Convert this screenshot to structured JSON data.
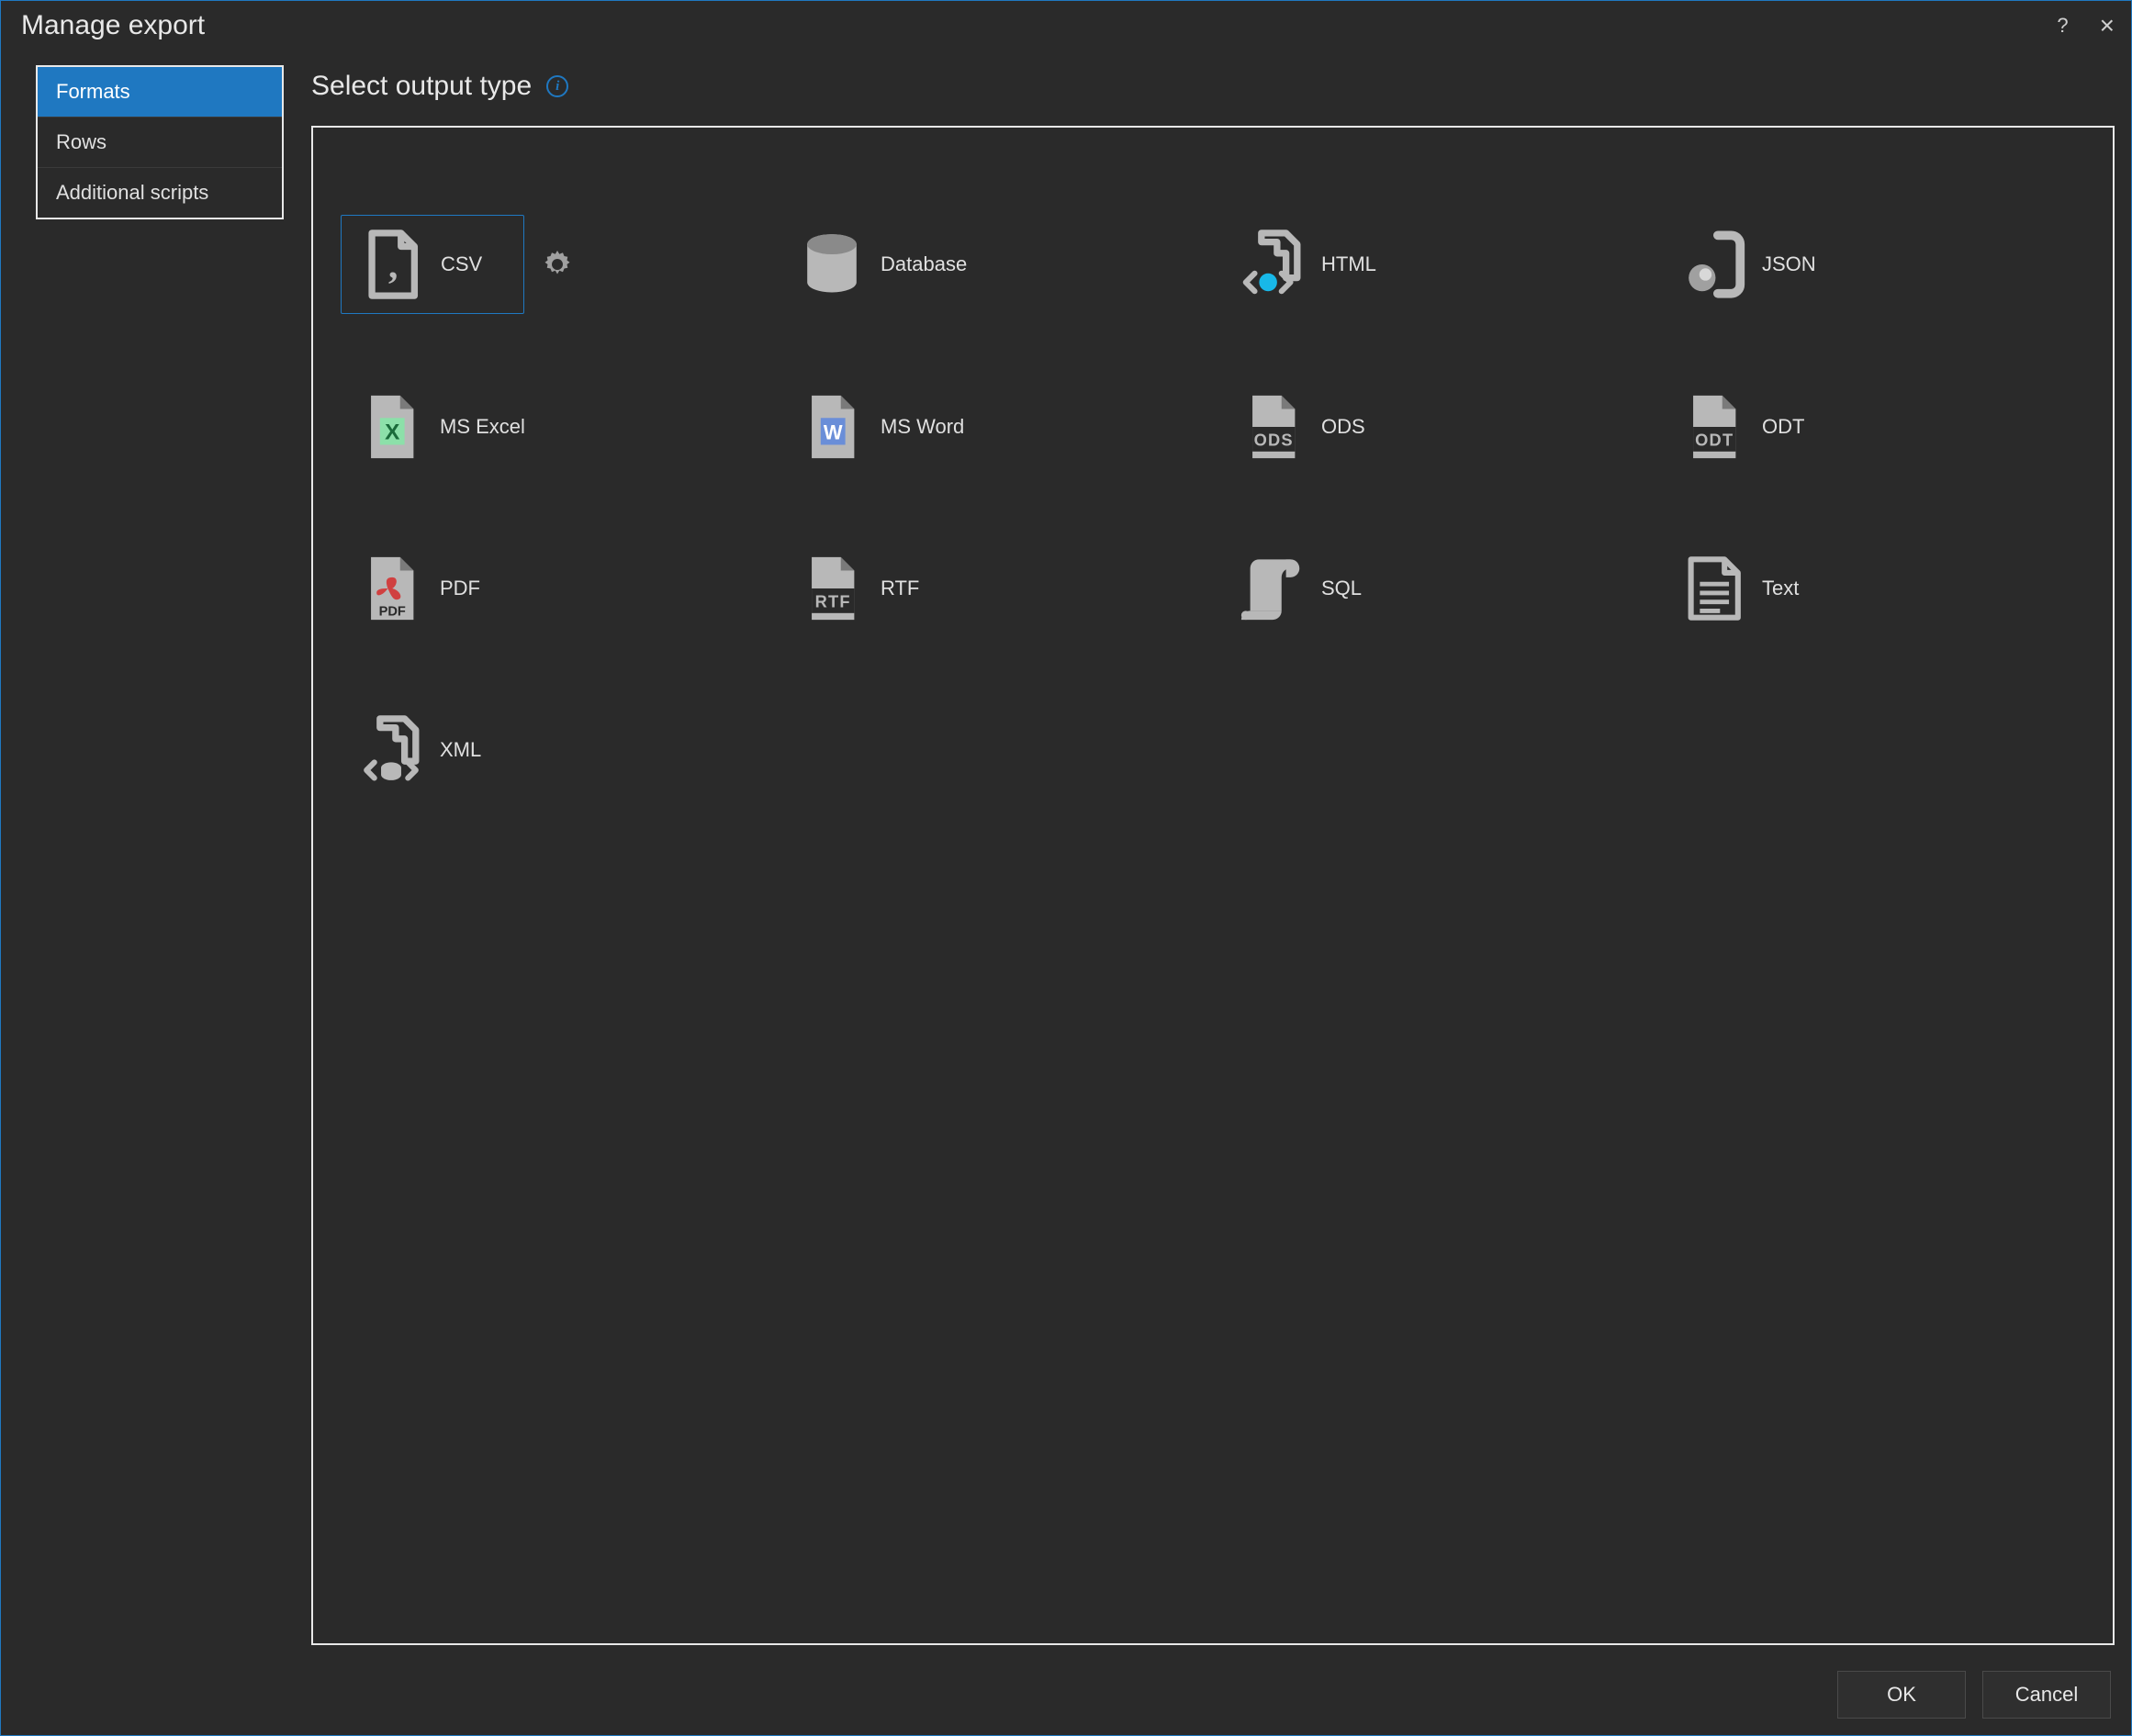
{
  "window": {
    "title": "Manage export",
    "help_symbol": "?",
    "close_symbol": "×"
  },
  "colors": {
    "background": "#2a2a2a",
    "border_blue": "#1f78c1",
    "border_white": "#e8e8e8",
    "text": "#e0e0e0",
    "icon_gray": "#a0a0a0",
    "icon_light": "#b8b8b8",
    "accent_cyan": "#18b8e8",
    "excel_green": "#8ce0a9",
    "word_blue": "#6a8ed8",
    "pdf_red": "#d04040"
  },
  "sidebar": {
    "items": [
      {
        "label": "Formats",
        "active": true
      },
      {
        "label": "Rows",
        "active": false
      },
      {
        "label": "Additional scripts",
        "active": false
      }
    ]
  },
  "main": {
    "heading": "Select output type",
    "info_symbol": "i"
  },
  "formats": [
    {
      "key": "csv",
      "label": "CSV",
      "icon": "csv-icon",
      "selected": true,
      "gear": true
    },
    {
      "key": "database",
      "label": "Database",
      "icon": "database-icon",
      "selected": false,
      "gear": false
    },
    {
      "key": "html",
      "label": "HTML",
      "icon": "html-icon",
      "selected": false,
      "gear": false
    },
    {
      "key": "json",
      "label": "JSON",
      "icon": "json-icon",
      "selected": false,
      "gear": false
    },
    {
      "key": "msexcel",
      "label": "MS Excel",
      "icon": "excel-icon",
      "selected": false,
      "gear": false
    },
    {
      "key": "msword",
      "label": "MS Word",
      "icon": "word-icon",
      "selected": false,
      "gear": false
    },
    {
      "key": "ods",
      "label": "ODS",
      "icon": "ods-icon",
      "selected": false,
      "gear": false
    },
    {
      "key": "odt",
      "label": "ODT",
      "icon": "odt-icon",
      "selected": false,
      "gear": false
    },
    {
      "key": "pdf",
      "label": "PDF",
      "icon": "pdf-icon",
      "selected": false,
      "gear": false
    },
    {
      "key": "rtf",
      "label": "RTF",
      "icon": "rtf-icon",
      "selected": false,
      "gear": false
    },
    {
      "key": "sql",
      "label": "SQL",
      "icon": "sql-icon",
      "selected": false,
      "gear": false
    },
    {
      "key": "text",
      "label": "Text",
      "icon": "text-icon",
      "selected": false,
      "gear": false
    },
    {
      "key": "xml",
      "label": "XML",
      "icon": "xml-icon",
      "selected": false,
      "gear": false
    }
  ],
  "footer": {
    "ok_label": "OK",
    "cancel_label": "Cancel"
  }
}
